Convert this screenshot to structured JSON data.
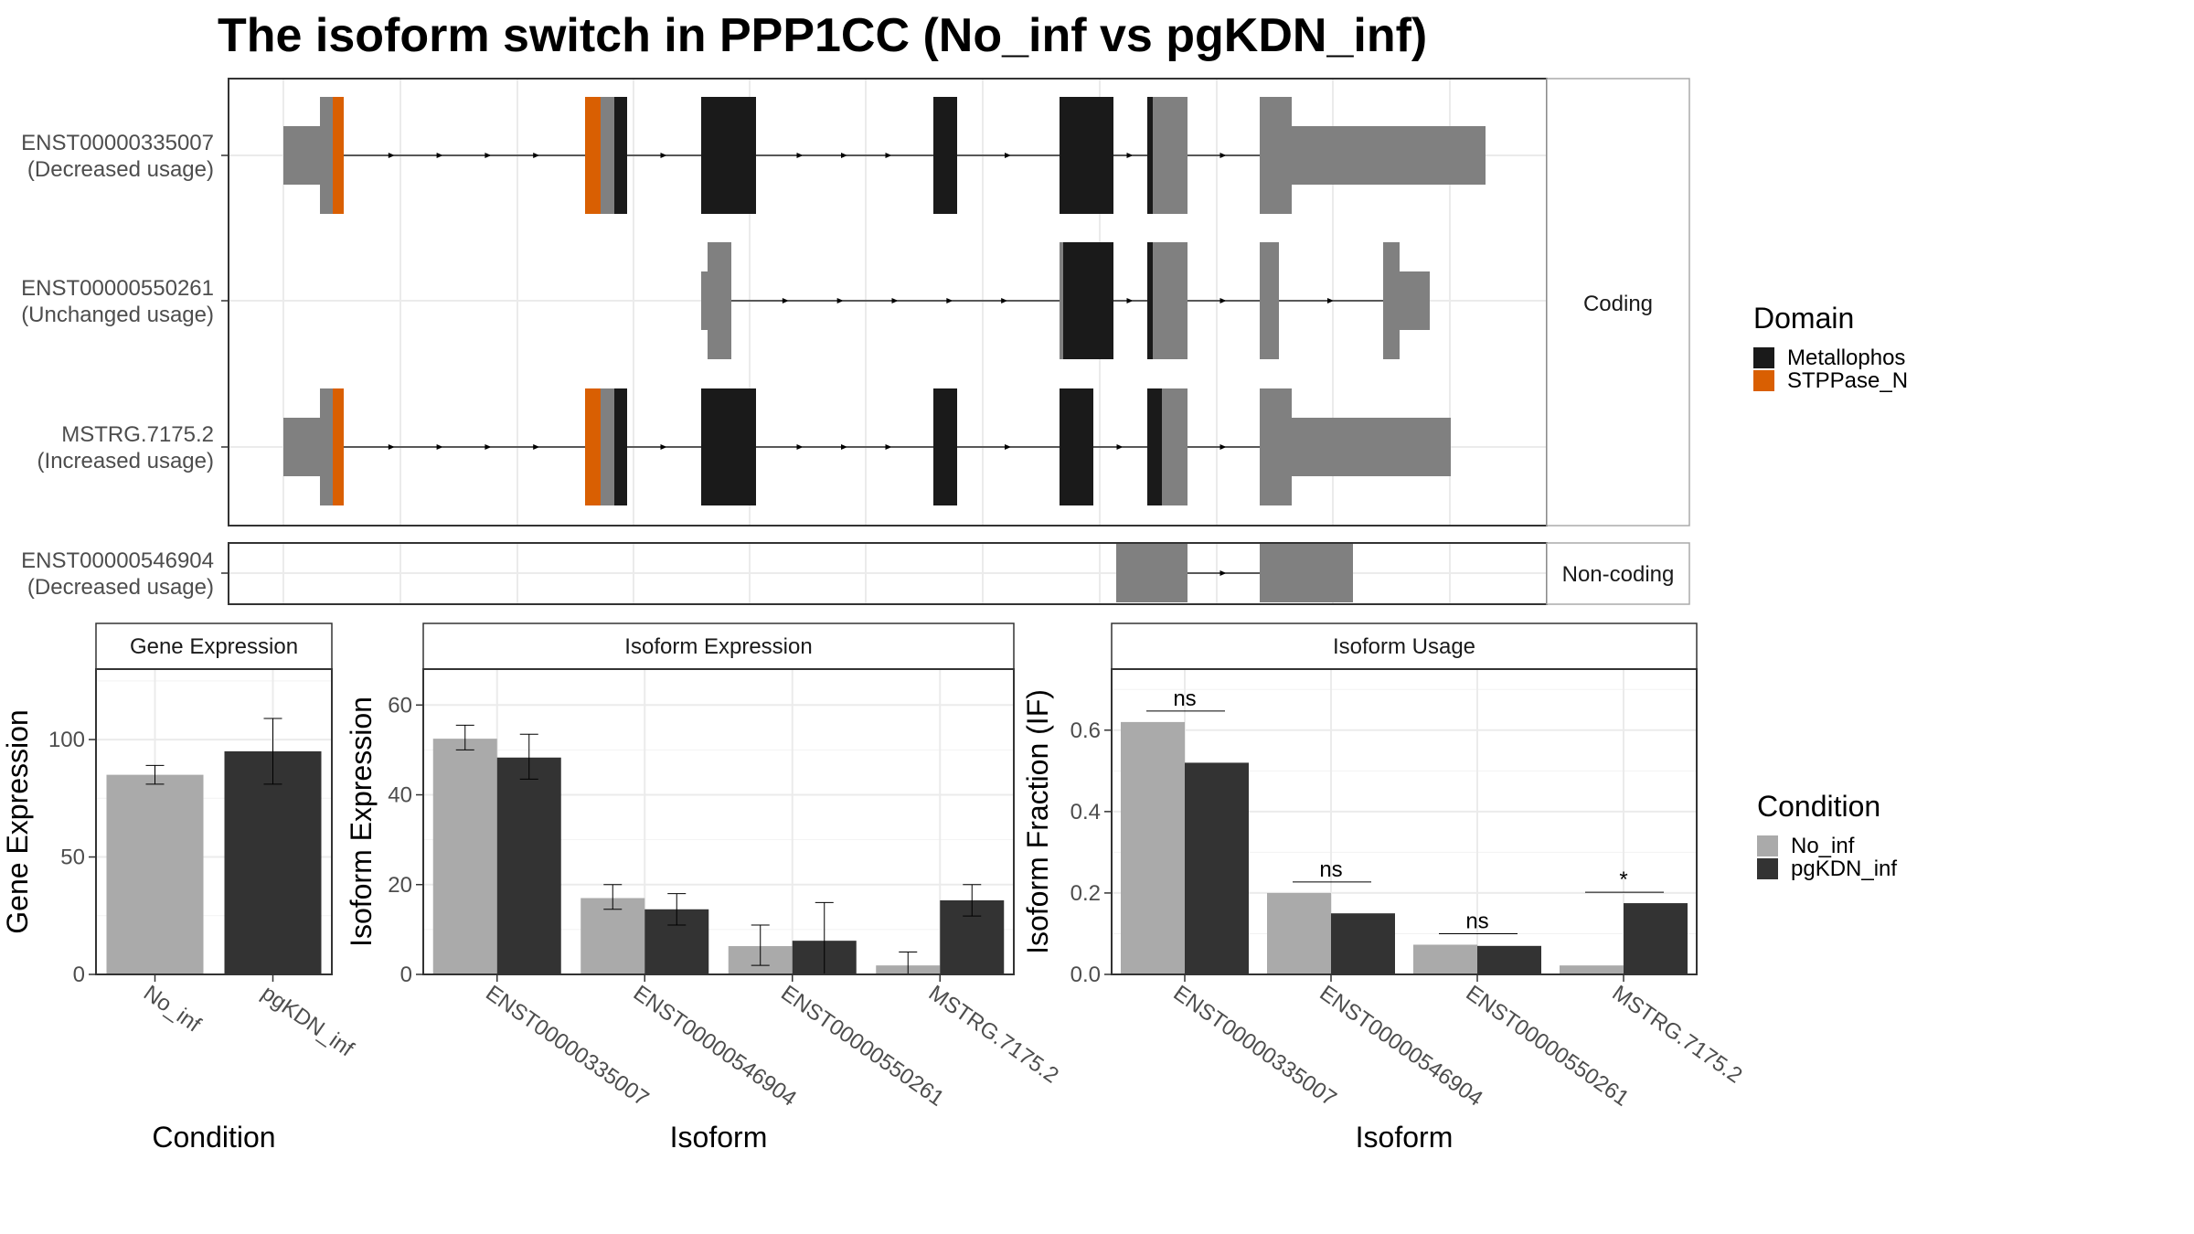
{
  "title": "The isoform switch in PPP1CC (No_inf vs pgKDN_inf)",
  "colors": {
    "metallophos": "#1a1a1a",
    "stppase": "#d95f02",
    "exon": "#808080",
    "no_inf": "#aaaaaa",
    "pgkdn_inf": "#333333",
    "grid": "#ebebeb",
    "panel_border": "#333333",
    "strip_border": "#aaaaaa"
  },
  "structure": {
    "coding_strip": "Coding",
    "noncoding_strip": "Non-coding",
    "isoforms": [
      {
        "id": "ENST00000335007",
        "usage": "(Decreased usage)",
        "group": "coding"
      },
      {
        "id": "ENST00000550261",
        "usage": "(Unchanged usage)",
        "group": "coding"
      },
      {
        "id": "MSTRG.7175.2",
        "usage": "(Increased usage)",
        "group": "coding"
      },
      {
        "id": "ENST00000546904",
        "usage": "(Decreased usage)",
        "group": "noncoding"
      }
    ],
    "domain_legend": {
      "title": "Domain",
      "items": [
        {
          "label": "Metallophos",
          "color": "#1a1a1a"
        },
        {
          "label": "STPPase_N",
          "color": "#d95f02"
        }
      ]
    }
  },
  "condition_legend": {
    "title": "Condition",
    "items": [
      {
        "label": "No_inf",
        "color": "#aaaaaa"
      },
      {
        "label": "pgKDN_inf",
        "color": "#333333"
      }
    ]
  },
  "chart_data": [
    {
      "type": "bar",
      "title": "Gene Expression",
      "xlabel": "Condition",
      "ylabel": "Gene Expression",
      "ylim": [
        0,
        130
      ],
      "yticks": [
        0,
        50,
        100
      ],
      "categories": [
        "No_inf",
        "pgKDN_inf"
      ],
      "values": [
        85,
        95
      ],
      "errors": [
        [
          81,
          89
        ],
        [
          81,
          109
        ]
      ],
      "colors": [
        "#aaaaaa",
        "#333333"
      ]
    },
    {
      "type": "bar",
      "title": "Isoform Expression",
      "xlabel": "Isoform",
      "ylabel": "Isoform Expression",
      "ylim": [
        0,
        68
      ],
      "yticks": [
        0,
        20,
        40,
        60
      ],
      "categories": [
        "ENST00000335007",
        "ENST00000546904",
        "ENST00000550261",
        "MSTRG.7175.2"
      ],
      "series": [
        {
          "name": "No_inf",
          "values": [
            52.5,
            17,
            6.3,
            2
          ],
          "errors": [
            [
              50,
              55.5
            ],
            [
              14.5,
              20
            ],
            [
              2,
              11
            ],
            [
              0,
              5
            ]
          ]
        },
        {
          "name": "pgKDN_inf",
          "values": [
            48.3,
            14.5,
            7.5,
            16.5
          ],
          "errors": [
            [
              43.5,
              53.5
            ],
            [
              11,
              18
            ],
            [
              0,
              16
            ],
            [
              13,
              20
            ]
          ]
        }
      ]
    },
    {
      "type": "bar",
      "title": "Isoform Usage",
      "xlabel": "Isoform",
      "ylabel": "Isoform Fraction (IF)",
      "ylim": [
        0,
        0.75
      ],
      "yticks": [
        0.0,
        0.2,
        0.4,
        0.6
      ],
      "categories": [
        "ENST00000335007",
        "ENST00000546904",
        "ENST00000550261",
        "MSTRG.7175.2"
      ],
      "series": [
        {
          "name": "No_inf",
          "values": [
            0.62,
            0.2,
            0.073,
            0.022
          ]
        },
        {
          "name": "pgKDN_inf",
          "values": [
            0.52,
            0.15,
            0.07,
            0.175
          ]
        }
      ],
      "significance": [
        "ns",
        "ns",
        "ns",
        "*"
      ]
    }
  ]
}
